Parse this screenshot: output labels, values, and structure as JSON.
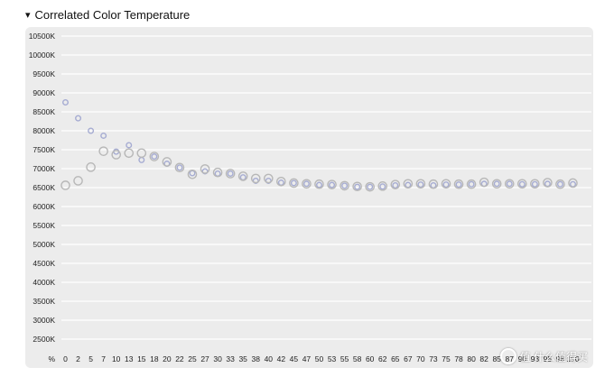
{
  "section": {
    "caret": "▾",
    "title": "Correlated Color Temperature"
  },
  "chart_data": {
    "type": "scatter",
    "y_ticks": [
      "2500K",
      "3000K",
      "3500K",
      "4000K",
      "4500K",
      "5000K",
      "5500K",
      "6000K",
      "6500K",
      "7000K",
      "7500K",
      "8000K",
      "8500K",
      "9000K",
      "9500K",
      "10000K",
      "10500K"
    ],
    "ylim": [
      2000,
      10500
    ],
    "x_unit_label": "%",
    "categories": [
      "0",
      "2",
      "5",
      "7",
      "10",
      "13",
      "15",
      "18",
      "20",
      "22",
      "25",
      "27",
      "30",
      "33",
      "35",
      "38",
      "40",
      "42",
      "45",
      "47",
      "50",
      "53",
      "55",
      "58",
      "60",
      "62",
      "65",
      "67",
      "70",
      "73",
      "75",
      "78",
      "80",
      "82",
      "85",
      "87",
      "90",
      "93",
      "95",
      "98",
      "100"
    ],
    "series": [
      {
        "marker": "small",
        "color": "#a6acd2",
        "values": [
          8750,
          8330,
          8000,
          7870,
          7450,
          7620,
          7230,
          7320,
          7130,
          7030,
          6880,
          6930,
          6870,
          6870,
          6770,
          6680,
          6680,
          6630,
          6620,
          6600,
          6570,
          6570,
          6550,
          6520,
          6520,
          6530,
          6560,
          6570,
          6580,
          6560,
          6580,
          6580,
          6590,
          6600,
          6600,
          6600,
          6590,
          6590,
          6600,
          6590,
          6590
        ]
      },
      {
        "marker": "large",
        "color": "#b7b7b7",
        "values": [
          6560,
          6680,
          7040,
          7460,
          7370,
          7410,
          7410,
          7320,
          7180,
          7030,
          6850,
          6990,
          6900,
          6870,
          6800,
          6740,
          6740,
          6660,
          6620,
          6600,
          6590,
          6580,
          6550,
          6530,
          6520,
          6540,
          6580,
          6600,
          6600,
          6590,
          6600,
          6590,
          6590,
          6640,
          6600,
          6600,
          6600,
          6600,
          6630,
          6590,
          6620
        ]
      }
    ],
    "grid": true
  },
  "watermark": "值 什么值得买"
}
